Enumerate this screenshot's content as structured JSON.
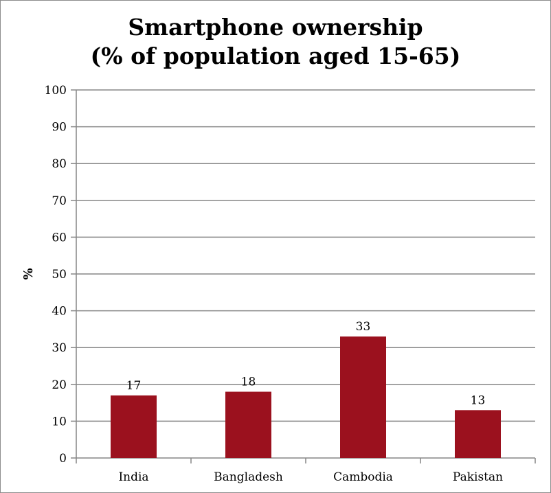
{
  "chart_data": {
    "type": "bar",
    "title": [
      "Smartphone ownership",
      "(% of population aged 15-65)"
    ],
    "xlabel": "",
    "ylabel": "%",
    "categories": [
      "India",
      "Bangladesh",
      "Cambodia",
      "Pakistan"
    ],
    "values": [
      17,
      18,
      33,
      13
    ],
    "data_labels": [
      "17",
      "18",
      "33",
      "13"
    ],
    "ylim": [
      0,
      100
    ],
    "yticks": [
      0,
      10,
      20,
      30,
      40,
      50,
      60,
      70,
      80,
      90,
      100
    ],
    "grid": true,
    "legend": "none",
    "colors": {
      "bar": "#9b111e",
      "grid": "#868686"
    }
  }
}
